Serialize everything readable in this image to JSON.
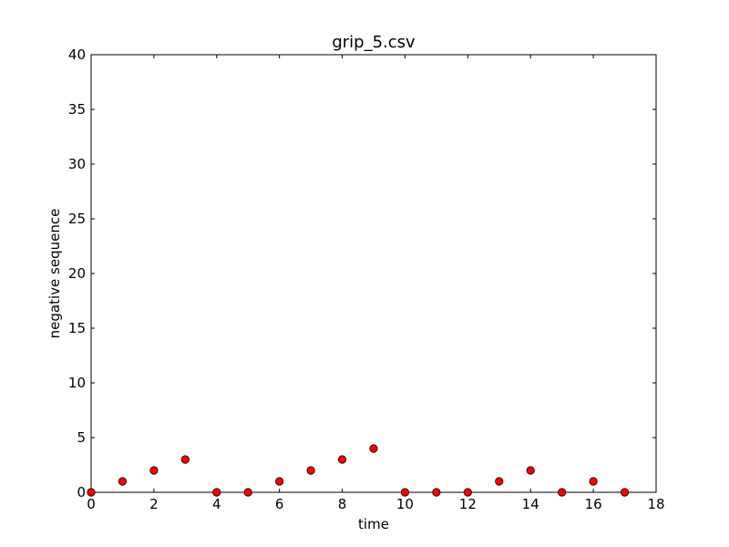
{
  "chart_data": {
    "type": "scatter",
    "title": "grip_5.csv",
    "xlabel": "time",
    "ylabel": "negative sequence",
    "xlim": [
      0,
      18
    ],
    "ylim": [
      0,
      40
    ],
    "xticks": [
      0,
      2,
      4,
      6,
      8,
      10,
      12,
      14,
      16,
      18
    ],
    "yticks": [
      0,
      5,
      10,
      15,
      20,
      25,
      30,
      35,
      40
    ],
    "grid": false,
    "marker_color": "#ff0000",
    "series": [
      {
        "x": [
          0,
          1,
          2,
          3,
          4,
          5,
          6,
          7,
          8,
          9,
          10,
          11,
          12,
          13,
          14,
          15,
          16,
          17
        ],
        "y": [
          0,
          1,
          2,
          3,
          0,
          0,
          1,
          2,
          3,
          4,
          0,
          0,
          0,
          1,
          2,
          0,
          1,
          0
        ]
      }
    ]
  }
}
